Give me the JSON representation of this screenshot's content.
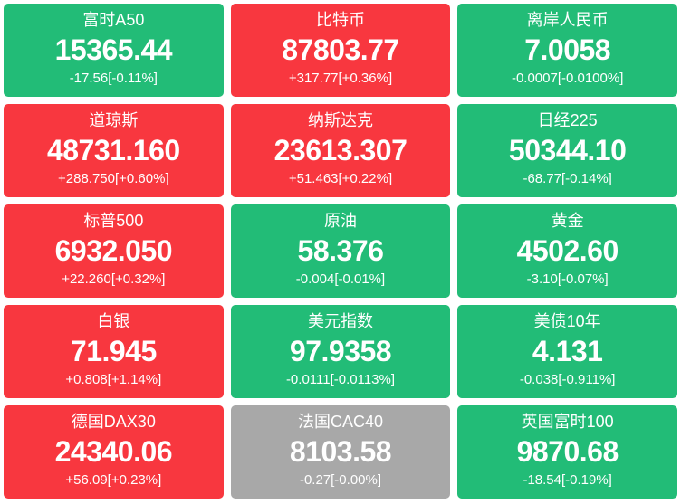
{
  "colors": {
    "red": "#f8373f",
    "green": "#22bc77",
    "gray": "#a8a8a8"
  },
  "tiles": [
    {
      "name": "富时A50",
      "value": "15365.44",
      "change": "-17.56[-0.11%]",
      "color": "green"
    },
    {
      "name": "比特币",
      "value": "87803.77",
      "change": "+317.77[+0.36%]",
      "color": "red"
    },
    {
      "name": "离岸人民币",
      "value": "7.0058",
      "change": "-0.0007[-0.0100%]",
      "color": "green"
    },
    {
      "name": "道琼斯",
      "value": "48731.160",
      "change": "+288.750[+0.60%]",
      "color": "red"
    },
    {
      "name": "纳斯达克",
      "value": "23613.307",
      "change": "+51.463[+0.22%]",
      "color": "red"
    },
    {
      "name": "日经225",
      "value": "50344.10",
      "change": "-68.77[-0.14%]",
      "color": "green"
    },
    {
      "name": "标普500",
      "value": "6932.050",
      "change": "+22.260[+0.32%]",
      "color": "red"
    },
    {
      "name": "原油",
      "value": "58.376",
      "change": "-0.004[-0.01%]",
      "color": "green"
    },
    {
      "name": "黄金",
      "value": "4502.60",
      "change": "-3.10[-0.07%]",
      "color": "green"
    },
    {
      "name": "白银",
      "value": "71.945",
      "change": "+0.808[+1.14%]",
      "color": "red"
    },
    {
      "name": "美元指数",
      "value": "97.9358",
      "change": "-0.0111[-0.0113%]",
      "color": "green"
    },
    {
      "name": "美债10年",
      "value": "4.131",
      "change": "-0.038[-0.911%]",
      "color": "green"
    },
    {
      "name": "德国DAX30",
      "value": "24340.06",
      "change": "+56.09[+0.23%]",
      "color": "red"
    },
    {
      "name": "法国CAC40",
      "value": "8103.58",
      "change": "-0.27[-0.00%]",
      "color": "gray"
    },
    {
      "name": "英国富时100",
      "value": "9870.68",
      "change": "-18.54[-0.19%]",
      "color": "green"
    }
  ]
}
